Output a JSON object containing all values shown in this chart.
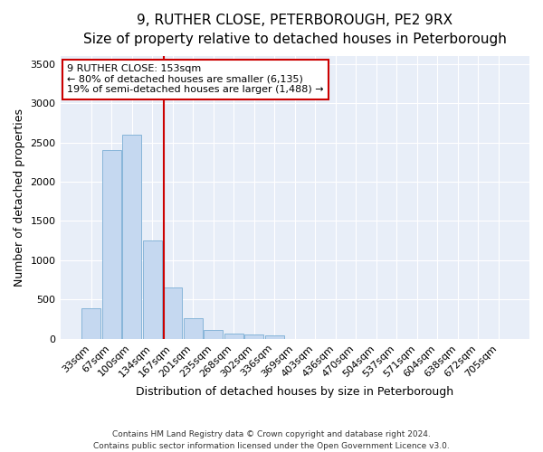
{
  "title": "9, RUTHER CLOSE, PETERBOROUGH, PE2 9RX",
  "subtitle": "Size of property relative to detached houses in Peterborough",
  "xlabel": "Distribution of detached houses by size in Peterborough",
  "ylabel": "Number of detached properties",
  "footnote1": "Contains HM Land Registry data © Crown copyright and database right 2024.",
  "footnote2": "Contains public sector information licensed under the Open Government Licence v3.0.",
  "categories": [
    "33sqm",
    "67sqm",
    "100sqm",
    "134sqm",
    "167sqm",
    "201sqm",
    "235sqm",
    "268sqm",
    "302sqm",
    "336sqm",
    "369sqm",
    "403sqm",
    "436sqm",
    "470sqm",
    "504sqm",
    "537sqm",
    "571sqm",
    "604sqm",
    "638sqm",
    "672sqm",
    "705sqm"
  ],
  "values": [
    390,
    2400,
    2600,
    1250,
    650,
    260,
    110,
    65,
    55,
    50,
    0,
    0,
    0,
    0,
    0,
    0,
    0,
    0,
    0,
    0,
    0
  ],
  "bar_color": "#c5d8f0",
  "bar_edge_color": "#7aaed4",
  "bar_width": 0.95,
  "ylim": [
    0,
    3600
  ],
  "yticks": [
    0,
    500,
    1000,
    1500,
    2000,
    2500,
    3000,
    3500
  ],
  "property_line_color": "#cc0000",
  "annotation_text_line1": "9 RUTHER CLOSE: 153sqm",
  "annotation_text_line2": "← 80% of detached houses are smaller (6,135)",
  "annotation_text_line3": "19% of semi-detached houses are larger (1,488) →",
  "annotation_box_color": "#cc0000",
  "axes_bg_color": "#e8eef8",
  "figure_bg_color": "#ffffff",
  "grid_color": "#ffffff",
  "title_fontsize": 11,
  "xlabel_fontsize": 9,
  "ylabel_fontsize": 9,
  "tick_fontsize": 8,
  "annot_fontsize": 8
}
